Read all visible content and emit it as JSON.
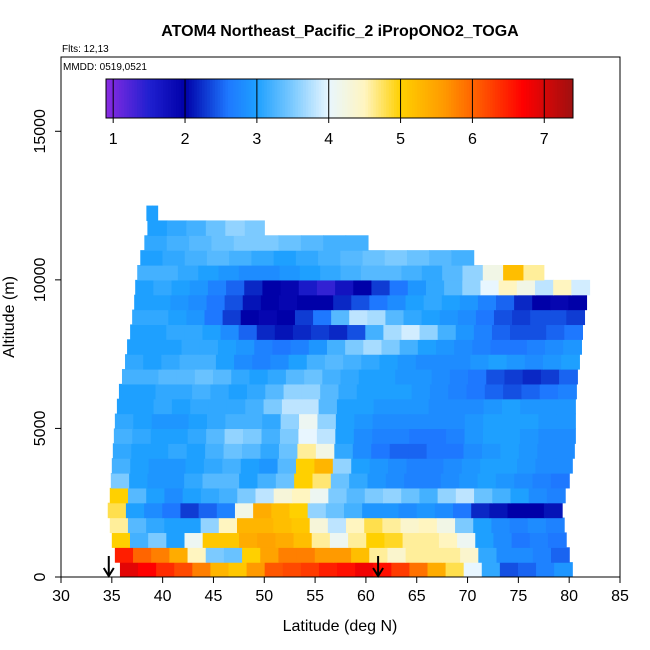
{
  "chart_data": {
    "type": "heatmap",
    "title": "ATOM4 Northeast_Pacific_2 iPropONO2_TOGA",
    "annotations": [
      "Flts: 12,13",
      "MMDD: 0519,0521"
    ],
    "xlabel": "Latitude (deg N)",
    "ylabel": "Altitude (m)",
    "xlim": [
      30,
      85
    ],
    "ylim": [
      0,
      17500
    ],
    "xticks": [
      30,
      35,
      40,
      45,
      50,
      55,
      60,
      65,
      70,
      75,
      80,
      85
    ],
    "yticks": [
      0,
      5000,
      10000,
      15000
    ],
    "colorbar": {
      "range": [
        0.9,
        7.4
      ],
      "ticks": [
        1,
        2,
        3,
        4,
        5,
        6,
        7
      ],
      "stops": [
        {
          "v": 0.9,
          "c": "#8a2be2"
        },
        {
          "v": 1.5,
          "c": "#2020d0"
        },
        {
          "v": 2.0,
          "c": "#0000a8"
        },
        {
          "v": 2.6,
          "c": "#1e78ff"
        },
        {
          "v": 3.0,
          "c": "#1ea0ff"
        },
        {
          "v": 3.5,
          "c": "#7ccaff"
        },
        {
          "v": 4.0,
          "c": "#e8f6ff"
        },
        {
          "v": 4.5,
          "c": "#fff5c0"
        },
        {
          "v": 5.0,
          "c": "#ffd000"
        },
        {
          "v": 5.6,
          "c": "#ff9a00"
        },
        {
          "v": 6.2,
          "c": "#ff4a00"
        },
        {
          "v": 6.7,
          "c": "#ff0000"
        },
        {
          "v": 7.4,
          "c": "#9e1010"
        }
      ]
    },
    "arrows_latitude": [
      34.7,
      61.2
    ],
    "layers": [
      {
        "alt": 250,
        "x0": 35.8,
        "x1": 80.3,
        "values": [
          6.9,
          6.7,
          6.4,
          6.2,
          5.8,
          5.3,
          5.1,
          5.6,
          6.1,
          6.2,
          6.3,
          6.5,
          6.6,
          6.8,
          6.6,
          6.3,
          5.9,
          5.4,
          4.8,
          4.0,
          3.1,
          2.4,
          2.5,
          2.7,
          2.9
        ]
      },
      {
        "alt": 750,
        "x0": 35.3,
        "x1": 80.0,
        "values": [
          6.5,
          6.0,
          5.8,
          5.4,
          4.5,
          3.5,
          3.4,
          5.0,
          5.5,
          5.8,
          5.8,
          5.6,
          5.6,
          5.2,
          4.6,
          4.4,
          4.6,
          4.6,
          4.6,
          4.4,
          3.1,
          2.8,
          2.8,
          2.7,
          2.5
        ]
      },
      {
        "alt": 1250,
        "x0": 35.0,
        "x1": 79.7,
        "values": [
          5.0,
          3.2,
          3.5,
          3.0,
          4.1,
          5.1,
          5.1,
          5.4,
          5.5,
          5.4,
          5.2,
          4.6,
          4.1,
          4.6,
          5.0,
          4.9,
          4.6,
          4.6,
          4.5,
          4.1,
          3.0,
          2.8,
          2.6,
          2.7,
          2.6
        ]
      },
      {
        "alt": 1750,
        "x0": 34.8,
        "x1": 79.5,
        "values": [
          4.6,
          3.3,
          3.1,
          3.0,
          3.0,
          3.6,
          4.5,
          5.3,
          5.3,
          5.2,
          5.1,
          4.3,
          3.8,
          4.5,
          4.8,
          4.6,
          4.4,
          4.5,
          4.2,
          3.5,
          3.0,
          2.8,
          2.7,
          2.8,
          2.7
        ]
      },
      {
        "alt": 2250,
        "x0": 34.6,
        "x1": 79.3,
        "values": [
          4.8,
          3.0,
          2.8,
          2.6,
          2.3,
          2.5,
          2.7,
          4.2,
          5.4,
          5.2,
          5.0,
          3.6,
          3.4,
          3.2,
          2.9,
          2.9,
          2.8,
          2.9,
          2.8,
          2.6,
          2.2,
          2.1,
          2.0,
          2.0,
          2.1
        ]
      },
      {
        "alt": 2750,
        "x0": 34.8,
        "x1": 79.6,
        "values": [
          5.0,
          3.3,
          3.0,
          2.8,
          3.0,
          3.1,
          3.2,
          3.5,
          3.8,
          4.3,
          4.5,
          4.1,
          3.5,
          3.3,
          3.5,
          3.6,
          3.4,
          3.2,
          3.6,
          3.8,
          3.4,
          3.2,
          3.0,
          2.8,
          2.7
        ]
      },
      {
        "alt": 3250,
        "x0": 34.9,
        "x1": 80.0,
        "values": [
          3.5,
          3.0,
          2.9,
          2.9,
          3.1,
          3.3,
          3.3,
          3.0,
          3.2,
          3.4,
          5.0,
          4.7,
          3.4,
          3.1,
          2.9,
          2.8,
          2.7,
          2.7,
          2.8,
          2.9,
          3.0,
          2.9,
          2.8,
          2.7,
          2.6
        ]
      },
      {
        "alt": 3750,
        "x0": 35.0,
        "x1": 80.3,
        "values": [
          3.2,
          3.0,
          2.9,
          2.9,
          3.0,
          3.1,
          3.2,
          3.0,
          2.9,
          3.3,
          5.0,
          5.3,
          3.6,
          3.0,
          2.9,
          2.8,
          2.7,
          2.7,
          2.8,
          2.9,
          3.0,
          3.0,
          2.9,
          2.8,
          2.8
        ]
      },
      {
        "alt": 4250,
        "x0": 35.1,
        "x1": 80.5,
        "values": [
          3.1,
          3.0,
          3.0,
          3.1,
          3.0,
          3.2,
          3.4,
          3.3,
          3.1,
          3.4,
          4.6,
          4.2,
          3.1,
          2.8,
          2.6,
          2.5,
          2.5,
          2.6,
          2.6,
          2.8,
          2.9,
          3.0,
          2.9,
          2.8,
          2.8
        ]
      },
      {
        "alt": 4750,
        "x0": 35.2,
        "x1": 80.6,
        "values": [
          3.2,
          3.1,
          3.0,
          3.0,
          3.1,
          3.3,
          3.6,
          3.5,
          3.2,
          3.5,
          4.0,
          3.8,
          3.0,
          2.8,
          2.7,
          2.7,
          2.6,
          2.6,
          2.7,
          2.9,
          3.0,
          3.0,
          2.9,
          2.8,
          2.8
        ]
      },
      {
        "alt": 5250,
        "x0": 35.3,
        "x1": 80.6,
        "values": [
          3.1,
          3.0,
          2.9,
          2.9,
          3.0,
          3.1,
          3.2,
          3.2,
          3.1,
          3.6,
          4.1,
          3.6,
          3.0,
          2.9,
          2.8,
          2.8,
          2.8,
          2.8,
          2.8,
          2.9,
          3.0,
          3.0,
          3.0,
          2.9,
          2.9
        ]
      },
      {
        "alt": 5750,
        "x0": 35.5,
        "x1": 80.6,
        "values": [
          3.0,
          3.0,
          3.1,
          3.0,
          3.1,
          3.1,
          3.1,
          3.2,
          3.5,
          3.8,
          3.8,
          3.3,
          3.0,
          3.0,
          2.9,
          2.9,
          2.9,
          2.8,
          2.8,
          2.8,
          2.9,
          3.0,
          2.9,
          2.9,
          2.9
        ]
      },
      {
        "alt": 6250,
        "x0": 35.7,
        "x1": 80.7,
        "values": [
          3.0,
          3.0,
          3.1,
          3.1,
          3.2,
          3.1,
          3.0,
          3.1,
          3.3,
          3.6,
          3.6,
          3.3,
          3.1,
          3.0,
          3.0,
          3.0,
          2.9,
          2.8,
          2.7,
          2.6,
          2.5,
          2.4,
          2.5,
          2.6,
          2.7
        ]
      },
      {
        "alt": 6750,
        "x0": 36.0,
        "x1": 80.8,
        "values": [
          3.2,
          3.2,
          3.3,
          3.3,
          3.4,
          3.3,
          3.1,
          3.0,
          3.1,
          3.3,
          3.4,
          3.2,
          3.1,
          3.0,
          3.0,
          2.9,
          2.9,
          2.8,
          2.7,
          2.6,
          2.4,
          2.3,
          2.2,
          2.3,
          2.5
        ]
      },
      {
        "alt": 7250,
        "x0": 36.3,
        "x1": 81.0,
        "values": [
          3.1,
          3.0,
          3.1,
          3.2,
          3.2,
          3.0,
          2.8,
          2.7,
          2.8,
          3.0,
          3.2,
          3.3,
          3.2,
          3.1,
          3.0,
          2.9,
          2.8,
          2.8,
          2.8,
          2.9,
          3.0,
          2.9,
          2.8,
          2.9,
          3.0
        ]
      },
      {
        "alt": 7750,
        "x0": 36.5,
        "x1": 81.2,
        "values": [
          3.0,
          3.0,
          3.0,
          3.1,
          3.1,
          3.0,
          2.9,
          2.7,
          2.6,
          2.7,
          2.9,
          3.2,
          3.5,
          3.7,
          3.5,
          3.2,
          3.0,
          2.9,
          2.8,
          2.7,
          2.6,
          2.6,
          2.7,
          2.8,
          2.9
        ]
      },
      {
        "alt": 8250,
        "x0": 36.8,
        "x1": 81.3,
        "values": [
          3.0,
          3.0,
          3.1,
          3.1,
          3.0,
          2.8,
          2.5,
          2.2,
          2.1,
          2.2,
          2.3,
          2.2,
          2.4,
          3.2,
          3.7,
          3.9,
          3.6,
          3.2,
          2.9,
          2.7,
          2.5,
          2.4,
          2.4,
          2.5,
          2.6
        ]
      },
      {
        "alt": 8750,
        "x0": 37.0,
        "x1": 81.5,
        "values": [
          3.1,
          3.1,
          3.0,
          2.9,
          2.6,
          2.3,
          2.0,
          1.9,
          2.0,
          2.3,
          2.6,
          3.3,
          3.8,
          3.7,
          3.3,
          3.1,
          3.0,
          2.9,
          2.8,
          2.6,
          2.4,
          2.3,
          2.4,
          2.4,
          2.3
        ]
      },
      {
        "alt": 9250,
        "x0": 37.2,
        "x1": 81.7,
        "values": [
          3.0,
          3.0,
          2.9,
          2.8,
          2.6,
          2.4,
          2.1,
          2.0,
          1.9,
          2.0,
          2.0,
          2.2,
          2.4,
          2.6,
          2.8,
          3.0,
          3.1,
          3.0,
          2.9,
          2.7,
          2.5,
          2.2,
          2.0,
          1.9,
          2.0
        ]
      },
      {
        "alt": 9750,
        "x0": 37.3,
        "x1": 82.0,
        "values": [
          3.0,
          3.1,
          3.0,
          2.9,
          2.7,
          2.5,
          2.2,
          2.0,
          1.9,
          1.6,
          1.4,
          1.7,
          2.0,
          2.3,
          2.6,
          2.9,
          3.1,
          3.3,
          3.6,
          4.0,
          4.5,
          4.2,
          3.8,
          4.5,
          3.9
        ]
      },
      {
        "alt": 10250,
        "x0": 37.5,
        "x1": 77.5,
        "values": [
          3.2,
          3.2,
          3.1,
          3.0,
          2.9,
          2.8,
          2.8,
          2.9,
          3.0,
          3.1,
          3.2,
          3.3,
          3.3,
          3.2,
          3.1,
          3.3,
          3.6,
          4.2,
          5.2,
          4.6
        ]
      },
      {
        "alt": 10750,
        "x0": 37.8,
        "x1": 70.6,
        "values": [
          3.0,
          3.1,
          3.2,
          3.3,
          3.2,
          3.1,
          3.0,
          3.1,
          3.2,
          3.3,
          3.4,
          3.5,
          3.4,
          3.3,
          3.2
        ]
      },
      {
        "alt": 11250,
        "x0": 38.2,
        "x1": 60.2,
        "values": [
          3.1,
          3.2,
          3.3,
          3.4,
          3.5,
          3.5,
          3.4,
          3.3,
          3.2,
          3.2
        ]
      },
      {
        "alt": 11750,
        "x0": 38.5,
        "x1": 50.0,
        "values": [
          3.0,
          3.1,
          3.2,
          3.4,
          3.6,
          3.5
        ]
      },
      {
        "alt": 12250,
        "x0": 38.4,
        "x1": 39.5,
        "values": [
          3.0,
          3.0
        ]
      }
    ]
  }
}
